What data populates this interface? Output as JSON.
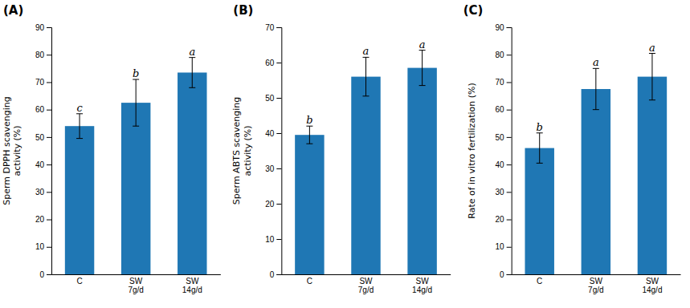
{
  "chart_data": [
    {
      "type": "bar",
      "title": "(A)",
      "y_label": "Sperm DPPH scavenging\nactivity (%)",
      "categories": [
        "C",
        "SW\n7g/d",
        "SW\n14g/d"
      ],
      "values": [
        54.0,
        62.5,
        73.5
      ],
      "errors": [
        4.5,
        8.5,
        5.5
      ],
      "annotations": [
        "c",
        "b",
        "a"
      ],
      "ylim": [
        0,
        90
      ],
      "yticks": [
        0,
        10,
        20,
        30,
        40,
        50,
        60,
        70,
        80,
        90
      ],
      "grid": false
    },
    {
      "type": "bar",
      "title": "(B)",
      "y_label": "Sperm ABTS scavenging\nactivity (%)",
      "categories": [
        "C",
        "SW\n7g/d",
        "SW\n14g/d"
      ],
      "values": [
        39.5,
        56.0,
        58.5
      ],
      "errors": [
        2.5,
        5.5,
        5.0
      ],
      "annotations": [
        "b",
        "a",
        "a"
      ],
      "ylim": [
        0,
        70
      ],
      "yticks": [
        0,
        10,
        20,
        30,
        40,
        50,
        60,
        70
      ],
      "grid": false
    },
    {
      "type": "bar",
      "title": "(C)",
      "y_label": "Rate of in vitro fertilization (%)",
      "categories": [
        "C",
        "SW\n7g/d",
        "SW\n14g/d"
      ],
      "values": [
        46.0,
        67.5,
        72.0
      ],
      "errors": [
        5.5,
        7.5,
        8.5
      ],
      "annotations": [
        "b",
        "a",
        "a"
      ],
      "ylim": [
        0,
        90
      ],
      "yticks": [
        0,
        10,
        20,
        30,
        40,
        50,
        60,
        70,
        80,
        90
      ],
      "grid": false
    }
  ]
}
